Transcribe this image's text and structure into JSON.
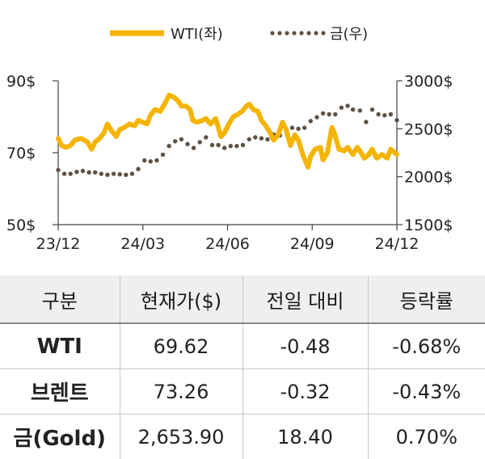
{
  "chart_data": {
    "type": "line",
    "legend": [
      "WTI(좌)",
      "금(우)"
    ],
    "legend_position": "top-center",
    "x_tick_labels": [
      "23/12",
      "24/03",
      "24/06",
      "24/09",
      "24/12"
    ],
    "x_range": [
      "2023-12-01",
      "2024-12-20"
    ],
    "y_left": {
      "ticks": [
        50,
        70,
        90
      ],
      "tick_labels": [
        "50$",
        "70$",
        "90$"
      ],
      "range": [
        50,
        90
      ]
    },
    "y_right": {
      "ticks": [
        1500,
        2000,
        2500,
        3000
      ],
      "tick_labels": [
        "1500$",
        "2000$",
        "2500$",
        "3000$"
      ],
      "range": [
        1500,
        3000
      ]
    },
    "grid": false,
    "series": [
      {
        "name": "WTI(좌)",
        "axis": "left",
        "style": "solid",
        "color": "#f5b400",
        "points": [
          [
            "2023-12-01",
            74
          ],
          [
            "2023-12-05",
            72
          ],
          [
            "2023-12-10",
            71.5
          ],
          [
            "2023-12-15",
            72
          ],
          [
            "2023-12-20",
            73.5
          ],
          [
            "2023-12-27",
            74
          ],
          [
            "2024-01-03",
            73
          ],
          [
            "2024-01-08",
            71
          ],
          [
            "2024-01-12",
            73
          ],
          [
            "2024-01-17",
            74
          ],
          [
            "2024-01-22",
            75.5
          ],
          [
            "2024-01-26",
            78
          ],
          [
            "2024-01-31",
            76
          ],
          [
            "2024-02-05",
            74.5
          ],
          [
            "2024-02-09",
            76.5
          ],
          [
            "2024-02-14",
            77
          ],
          [
            "2024-02-20",
            78
          ],
          [
            "2024-02-26",
            77.5
          ],
          [
            "2024-03-01",
            79
          ],
          [
            "2024-03-06",
            78.5
          ],
          [
            "2024-03-11",
            78
          ],
          [
            "2024-03-15",
            80.5
          ],
          [
            "2024-03-20",
            82
          ],
          [
            "2024-03-26",
            81.5
          ],
          [
            "2024-04-01",
            84
          ],
          [
            "2024-04-05",
            86
          ],
          [
            "2024-04-10",
            85.5
          ],
          [
            "2024-04-15",
            84.5
          ],
          [
            "2024-04-19",
            83
          ],
          [
            "2024-04-24",
            83
          ],
          [
            "2024-04-29",
            82
          ],
          [
            "2024-05-02",
            79
          ],
          [
            "2024-05-07",
            78.5
          ],
          [
            "2024-05-13",
            79
          ],
          [
            "2024-05-17",
            79.5
          ],
          [
            "2024-05-22",
            78
          ],
          [
            "2024-05-28",
            79.5
          ],
          [
            "2024-06-03",
            74.5
          ],
          [
            "2024-06-07",
            75.5
          ],
          [
            "2024-06-12",
            78
          ],
          [
            "2024-06-17",
            80
          ],
          [
            "2024-06-21",
            80.5
          ],
          [
            "2024-06-27",
            81.5
          ],
          [
            "2024-07-02",
            83
          ],
          [
            "2024-07-05",
            83.5
          ],
          [
            "2024-07-10",
            82
          ],
          [
            "2024-07-15",
            81.5
          ],
          [
            "2024-07-19",
            79
          ],
          [
            "2024-07-24",
            77.5
          ],
          [
            "2024-07-29",
            75.5
          ],
          [
            "2024-08-02",
            73.5
          ],
          [
            "2024-08-07",
            75
          ],
          [
            "2024-08-12",
            78.5
          ],
          [
            "2024-08-16",
            76.5
          ],
          [
            "2024-08-21",
            72
          ],
          [
            "2024-08-26",
            75
          ],
          [
            "2024-08-30",
            73.5
          ],
          [
            "2024-09-04",
            69.5
          ],
          [
            "2024-09-10",
            66
          ],
          [
            "2024-09-13",
            69
          ],
          [
            "2024-09-18",
            71
          ],
          [
            "2024-09-24",
            71.5
          ],
          [
            "2024-09-27",
            68
          ],
          [
            "2024-10-02",
            70
          ],
          [
            "2024-10-07",
            77
          ],
          [
            "2024-10-10",
            75.5
          ],
          [
            "2024-10-15",
            71
          ],
          [
            "2024-10-21",
            70.5
          ],
          [
            "2024-10-25",
            71.5
          ],
          [
            "2024-10-31",
            69.5
          ],
          [
            "2024-11-05",
            71.5
          ],
          [
            "2024-11-08",
            70.5
          ],
          [
            "2024-11-13",
            68.5
          ],
          [
            "2024-11-18",
            69.5
          ],
          [
            "2024-11-22",
            71
          ],
          [
            "2024-11-27",
            68.5
          ],
          [
            "2024-12-03",
            69.5
          ],
          [
            "2024-12-09",
            68.5
          ],
          [
            "2024-12-13",
            71
          ],
          [
            "2024-12-20",
            69.5
          ]
        ]
      },
      {
        "name": "금(우)",
        "axis": "right",
        "style": "dotted",
        "color": "#5e5146",
        "points": [
          [
            "2023-12-01",
            2070
          ],
          [
            "2023-12-08",
            2030
          ],
          [
            "2023-12-15",
            2030
          ],
          [
            "2023-12-22",
            2050
          ],
          [
            "2023-12-29",
            2060
          ],
          [
            "2024-01-05",
            2045
          ],
          [
            "2024-01-12",
            2045
          ],
          [
            "2024-01-19",
            2030
          ],
          [
            "2024-01-26",
            2020
          ],
          [
            "2024-02-02",
            2030
          ],
          [
            "2024-02-09",
            2025
          ],
          [
            "2024-02-16",
            2020
          ],
          [
            "2024-02-23",
            2030
          ],
          [
            "2024-03-01",
            2080
          ],
          [
            "2024-03-08",
            2170
          ],
          [
            "2024-03-15",
            2160
          ],
          [
            "2024-03-22",
            2170
          ],
          [
            "2024-03-29",
            2230
          ],
          [
            "2024-04-05",
            2320
          ],
          [
            "2024-04-12",
            2370
          ],
          [
            "2024-04-19",
            2390
          ],
          [
            "2024-04-26",
            2340
          ],
          [
            "2024-05-03",
            2300
          ],
          [
            "2024-05-10",
            2360
          ],
          [
            "2024-05-17",
            2410
          ],
          [
            "2024-05-24",
            2330
          ],
          [
            "2024-05-31",
            2330
          ],
          [
            "2024-06-07",
            2300
          ],
          [
            "2024-06-14",
            2320
          ],
          [
            "2024-06-21",
            2320
          ],
          [
            "2024-06-28",
            2330
          ],
          [
            "2024-07-05",
            2390
          ],
          [
            "2024-07-12",
            2410
          ],
          [
            "2024-07-19",
            2400
          ],
          [
            "2024-07-26",
            2390
          ],
          [
            "2024-08-02",
            2440
          ],
          [
            "2024-08-09",
            2430
          ],
          [
            "2024-08-16",
            2500
          ],
          [
            "2024-08-23",
            2510
          ],
          [
            "2024-08-30",
            2500
          ],
          [
            "2024-09-06",
            2510
          ],
          [
            "2024-09-13",
            2580
          ],
          [
            "2024-09-20",
            2620
          ],
          [
            "2024-09-27",
            2660
          ],
          [
            "2024-10-04",
            2650
          ],
          [
            "2024-10-11",
            2650
          ],
          [
            "2024-10-18",
            2720
          ],
          [
            "2024-10-25",
            2740
          ],
          [
            "2024-10-31",
            2700
          ],
          [
            "2024-11-08",
            2690
          ],
          [
            "2024-11-15",
            2570
          ],
          [
            "2024-11-22",
            2700
          ],
          [
            "2024-11-29",
            2650
          ],
          [
            "2024-12-06",
            2640
          ],
          [
            "2024-12-13",
            2650
          ],
          [
            "2024-12-20",
            2590
          ]
        ]
      }
    ]
  },
  "table": {
    "headers": [
      "구분",
      "현재가($)",
      "전일 대비",
      "등락률"
    ],
    "rows": [
      [
        "WTI",
        "69.62",
        "-0.48",
        "-0.68%"
      ],
      [
        "브렌트",
        "73.26",
        "-0.32",
        "-0.43%"
      ],
      [
        "금(Gold)",
        "2,653.90",
        "18.40",
        "0.70%"
      ]
    ]
  }
}
